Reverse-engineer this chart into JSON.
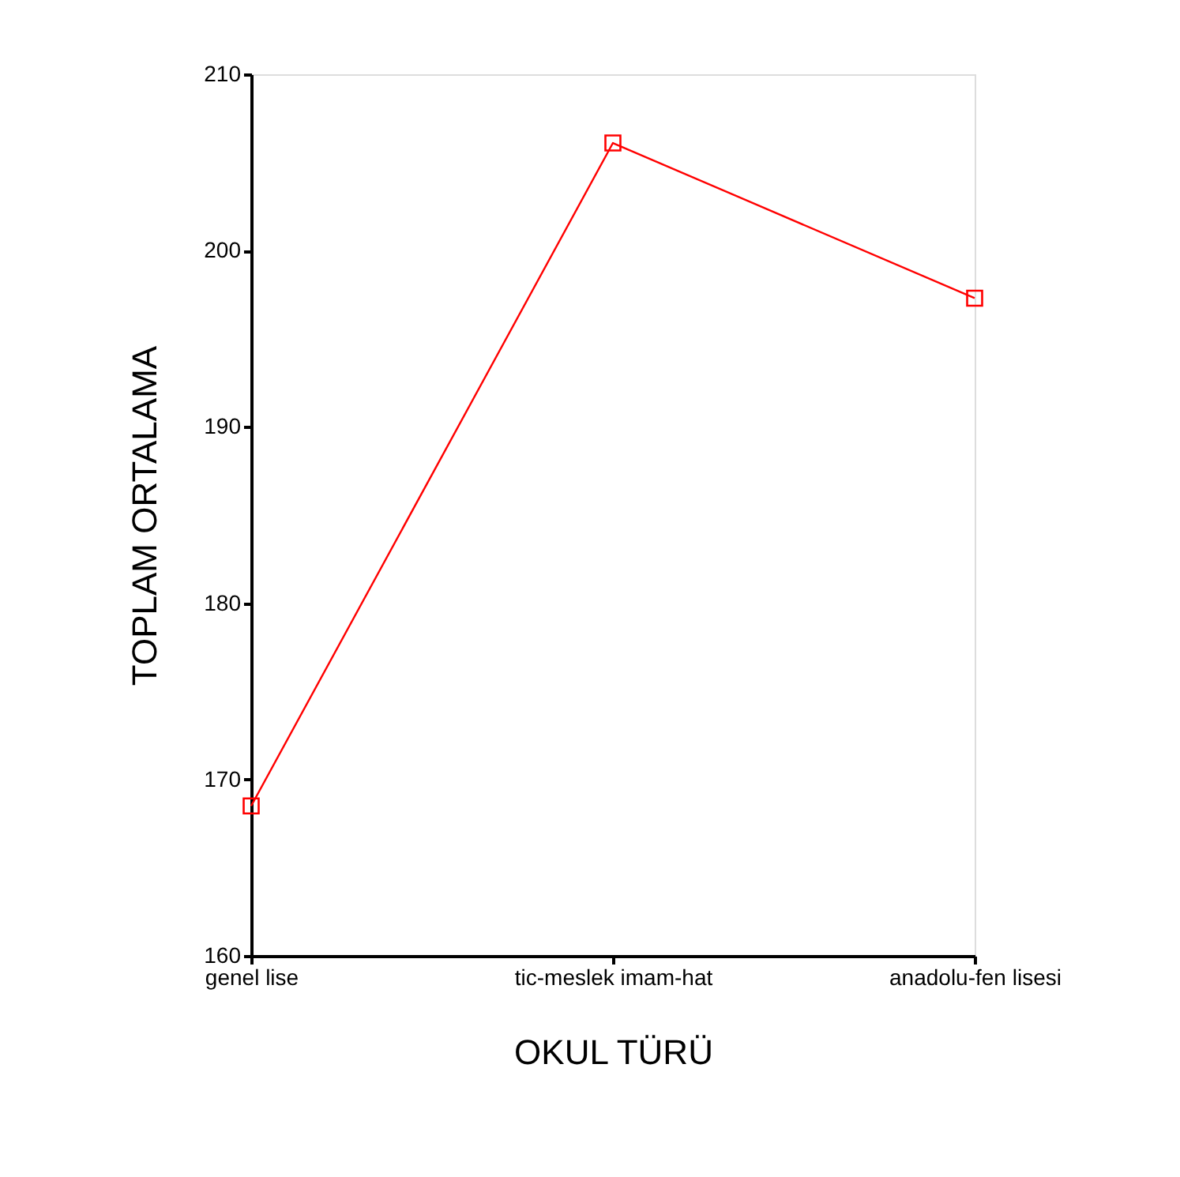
{
  "chart_data": {
    "type": "line",
    "xlabel": "OKUL TÜRÜ",
    "ylabel": "TOPLAM ORTALAMA",
    "categories": [
      "genel lise",
      "tic-meslek imam-hat",
      "anadolu-fen lisesi"
    ],
    "series": [
      {
        "color": "#ff0000",
        "values": [
          168.5,
          206.1,
          197.3
        ]
      }
    ],
    "ylim": [
      160,
      210
    ],
    "yticks": [
      160,
      170,
      180,
      190,
      200,
      210
    ],
    "grid": false,
    "legend": false,
    "marker": "square",
    "line_style": "solid"
  }
}
